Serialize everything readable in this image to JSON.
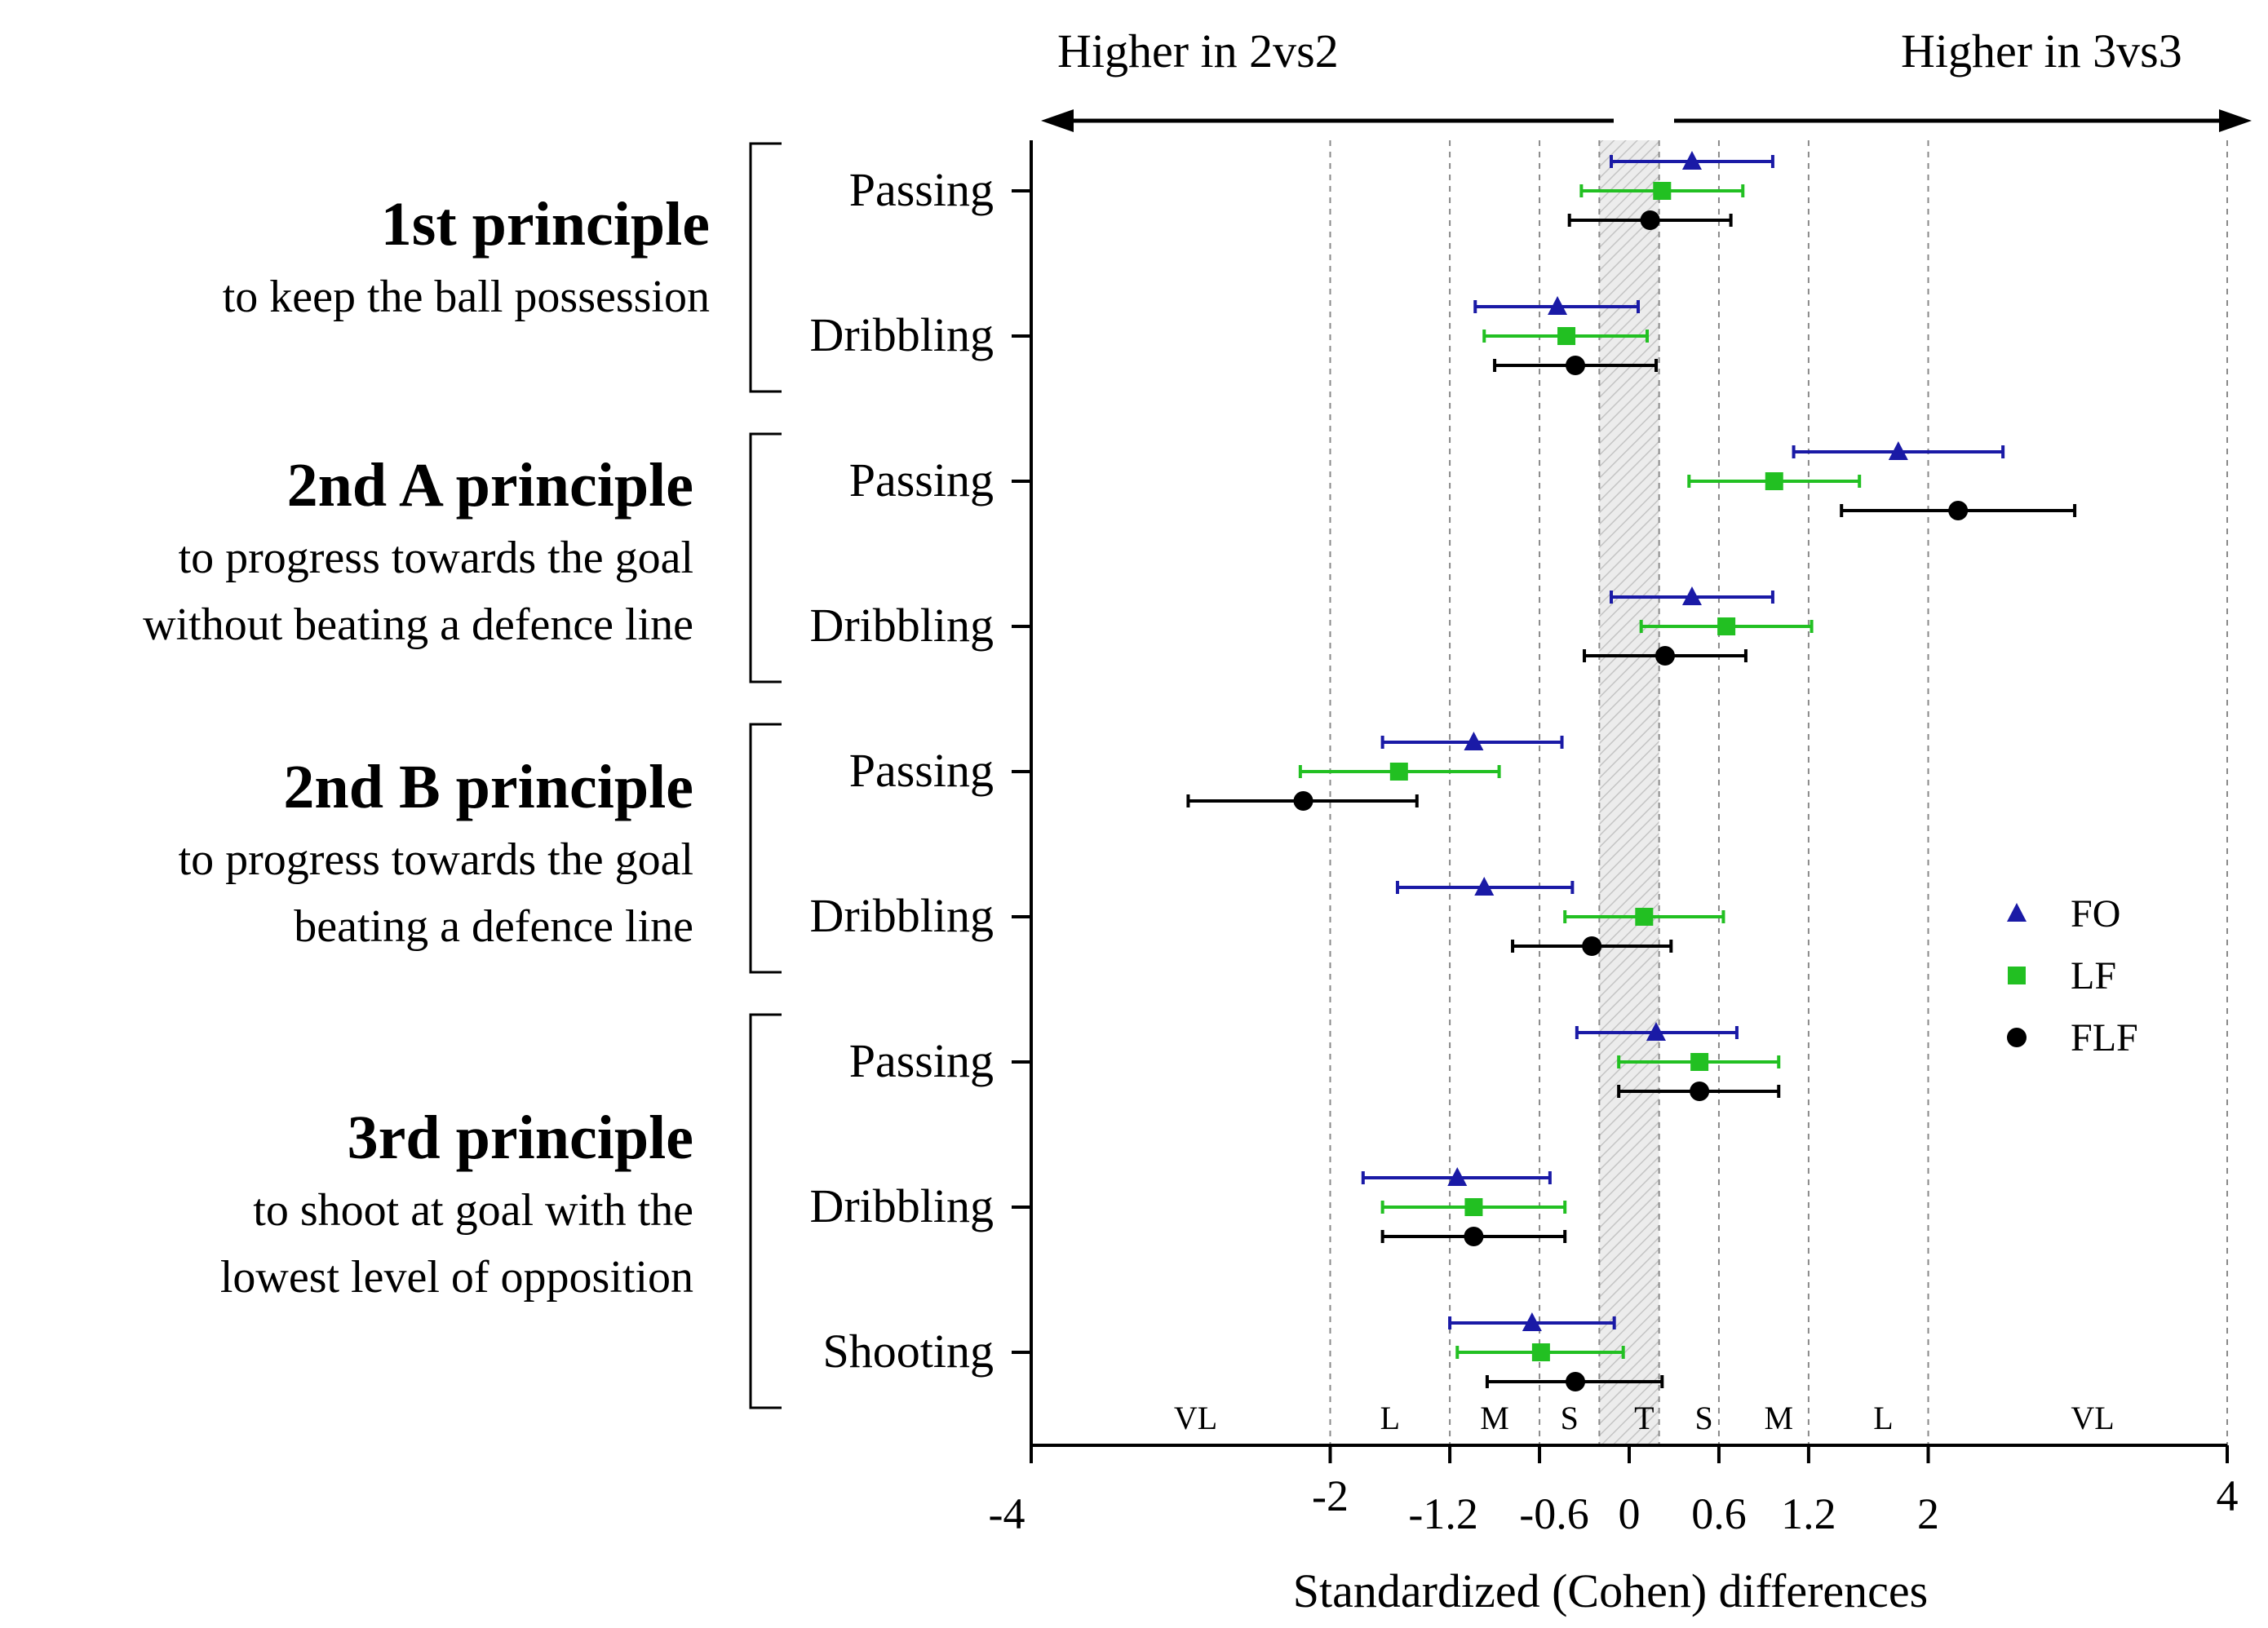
{
  "chart_data": {
    "type": "forest",
    "xlabel": "Standardized (Cohen) differences",
    "xlim": [
      -4,
      4
    ],
    "x_ticks": [
      -4,
      -2,
      -1.2,
      -0.6,
      0,
      0.6,
      1.2,
      2,
      4
    ],
    "x_tick_labels": [
      "-4",
      "-2",
      "-1.2",
      "-0.6",
      "0",
      "0.6",
      "1.2",
      "2",
      "4"
    ],
    "trivial_band": [
      -0.2,
      0.2
    ],
    "gridlines": [
      -2,
      -1.2,
      -0.6,
      -0.2,
      0.2,
      0.6,
      1.2,
      2,
      4
    ],
    "direction_labels": {
      "left": "Higher in 2vs2",
      "right": "Higher in 3vs3"
    },
    "magnitude_zones": [
      {
        "label": "VL",
        "x": -2.9
      },
      {
        "label": "L",
        "x": -1.6
      },
      {
        "label": "M",
        "x": -0.9
      },
      {
        "label": "S",
        "x": -0.4
      },
      {
        "label": "T",
        "x": 0.1
      },
      {
        "label": "S",
        "x": 0.5
      },
      {
        "label": "M",
        "x": 1.0
      },
      {
        "label": "L",
        "x": 1.7
      },
      {
        "label": "VL",
        "x": 3.1
      }
    ],
    "series_meta": [
      {
        "name": "FO",
        "color": "#1a1aa6",
        "marker": "triangle"
      },
      {
        "name": "LF",
        "color": "#22c022",
        "marker": "square"
      },
      {
        "name": "FLF",
        "color": "#000000",
        "marker": "circle"
      }
    ],
    "groups": [
      {
        "title": "1st principle",
        "subtitle": [
          "to keep the ball possession"
        ],
        "items": [
          {
            "label": "Passing",
            "points": [
              {
                "series": "FO",
                "mean": 0.42,
                "low": -0.12,
                "high": 0.96
              },
              {
                "series": "LF",
                "mean": 0.22,
                "low": -0.32,
                "high": 0.76
              },
              {
                "series": "FLF",
                "mean": 0.14,
                "low": -0.4,
                "high": 0.68
              }
            ]
          },
          {
            "label": "Dribbling",
            "points": [
              {
                "series": "FO",
                "mean": -0.48,
                "low": -1.03,
                "high": 0.06
              },
              {
                "series": "LF",
                "mean": -0.42,
                "low": -0.97,
                "high": 0.12
              },
              {
                "series": "FLF",
                "mean": -0.36,
                "low": -0.9,
                "high": 0.18
              }
            ]
          }
        ]
      },
      {
        "title": "2nd A principle",
        "subtitle": [
          "to progress towards the goal",
          "without beating a defence line"
        ],
        "items": [
          {
            "label": "Passing",
            "points": [
              {
                "series": "FO",
                "mean": 1.8,
                "low": 1.1,
                "high": 2.5
              },
              {
                "series": "LF",
                "mean": 0.97,
                "low": 0.4,
                "high": 1.54
              },
              {
                "series": "FLF",
                "mean": 2.2,
                "low": 1.42,
                "high": 2.98
              }
            ]
          },
          {
            "label": "Dribbling",
            "points": [
              {
                "series": "FO",
                "mean": 0.42,
                "low": -0.12,
                "high": 0.96
              },
              {
                "series": "LF",
                "mean": 0.65,
                "low": 0.08,
                "high": 1.22
              },
              {
                "series": "FLF",
                "mean": 0.24,
                "low": -0.3,
                "high": 0.78
              }
            ]
          }
        ]
      },
      {
        "title": "2nd B principle",
        "subtitle": [
          "to progress towards the goal",
          "beating a defence line"
        ],
        "items": [
          {
            "label": "Passing",
            "points": [
              {
                "series": "FO",
                "mean": -1.04,
                "low": -1.65,
                "high": -0.45
              },
              {
                "series": "LF",
                "mean": -1.54,
                "low": -2.2,
                "high": -0.87
              },
              {
                "series": "FLF",
                "mean": -2.18,
                "low": -2.95,
                "high": -1.42
              }
            ]
          },
          {
            "label": "Dribbling",
            "points": [
              {
                "series": "FO",
                "mean": -0.97,
                "low": -1.55,
                "high": -0.38
              },
              {
                "series": "LF",
                "mean": 0.1,
                "low": -0.43,
                "high": 0.63
              },
              {
                "series": "FLF",
                "mean": -0.25,
                "low": -0.78,
                "high": 0.28
              }
            ]
          }
        ]
      },
      {
        "title": "3rd principle",
        "subtitle": [
          "to shoot at goal with the",
          "lowest level of opposition"
        ],
        "items": [
          {
            "label": "Passing",
            "points": [
              {
                "series": "FO",
                "mean": 0.18,
                "low": -0.35,
                "high": 0.72
              },
              {
                "series": "LF",
                "mean": 0.47,
                "low": -0.07,
                "high": 1.0
              },
              {
                "series": "FLF",
                "mean": 0.47,
                "low": -0.07,
                "high": 1.0
              }
            ]
          },
          {
            "label": "Dribbling",
            "points": [
              {
                "series": "FO",
                "mean": -1.15,
                "low": -1.78,
                "high": -0.53
              },
              {
                "series": "LF",
                "mean": -1.04,
                "low": -1.65,
                "high": -0.43
              },
              {
                "series": "FLF",
                "mean": -1.04,
                "low": -1.65,
                "high": -0.43
              }
            ]
          },
          {
            "label": "Shooting",
            "points": [
              {
                "series": "FO",
                "mean": -0.65,
                "low": -1.2,
                "high": -0.1
              },
              {
                "series": "LF",
                "mean": -0.59,
                "low": -1.15,
                "high": -0.04
              },
              {
                "series": "FLF",
                "mean": -0.36,
                "low": -0.95,
                "high": 0.22
              }
            ]
          }
        ]
      }
    ]
  }
}
